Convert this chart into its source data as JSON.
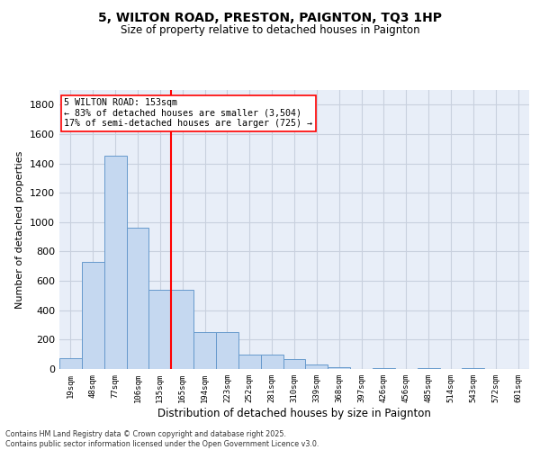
{
  "title": "5, WILTON ROAD, PRESTON, PAIGNTON, TQ3 1HP",
  "subtitle": "Size of property relative to detached houses in Paignton",
  "xlabel": "Distribution of detached houses by size in Paignton",
  "ylabel": "Number of detached properties",
  "categories": [
    "19sqm",
    "48sqm",
    "77sqm",
    "106sqm",
    "135sqm",
    "165sqm",
    "194sqm",
    "223sqm",
    "252sqm",
    "281sqm",
    "310sqm",
    "339sqm",
    "368sqm",
    "397sqm",
    "426sqm",
    "456sqm",
    "485sqm",
    "514sqm",
    "543sqm",
    "572sqm",
    "601sqm"
  ],
  "values": [
    75,
    730,
    1450,
    960,
    540,
    540,
    250,
    250,
    100,
    100,
    70,
    30,
    10,
    0,
    5,
    0,
    5,
    0,
    5,
    0,
    0
  ],
  "bar_color": "#c5d8f0",
  "bar_edge_color": "#6699cc",
  "grid_color": "#c8d0de",
  "background_color": "#e8eef8",
  "vline_x": 4.5,
  "vline_color": "red",
  "annotation_text": "5 WILTON ROAD: 153sqm\n← 83% of detached houses are smaller (3,504)\n17% of semi-detached houses are larger (725) →",
  "annotation_box_color": "white",
  "annotation_box_edge_color": "red",
  "footnote": "Contains HM Land Registry data © Crown copyright and database right 2025.\nContains public sector information licensed under the Open Government Licence v3.0.",
  "ylim": [
    0,
    1900
  ],
  "yticks": [
    0,
    200,
    400,
    600,
    800,
    1000,
    1200,
    1400,
    1600,
    1800
  ]
}
